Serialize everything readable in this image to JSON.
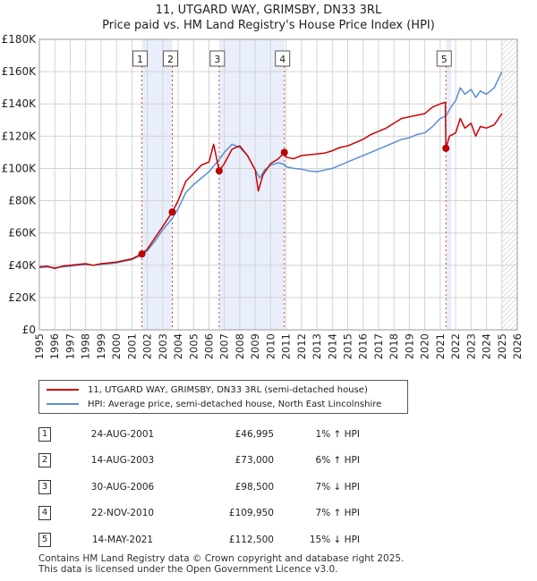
{
  "chart_data": {
    "type": "line",
    "title": "11, UTGARD WAY, GRIMSBY, DN33 3RL",
    "subtitle": "Price paid vs. HM Land Registry's House Price Index (HPI)",
    "xlim": [
      1995,
      2026
    ],
    "ylim": [
      0,
      180000
    ],
    "x_ticks": [
      "1995",
      "1996",
      "1997",
      "1998",
      "1999",
      "2000",
      "2001",
      "2002",
      "2003",
      "2004",
      "2005",
      "2006",
      "2007",
      "2008",
      "2009",
      "2010",
      "2011",
      "2012",
      "2013",
      "2014",
      "2015",
      "2016",
      "2017",
      "2018",
      "2019",
      "2020",
      "2021",
      "2022",
      "2023",
      "2024",
      "2025",
      "2026"
    ],
    "y_ticks": [
      {
        "value": 0,
        "label": "£0"
      },
      {
        "value": 20000,
        "label": "£20K"
      },
      {
        "value": 40000,
        "label": "£40K"
      },
      {
        "value": 60000,
        "label": "£60K"
      },
      {
        "value": 80000,
        "label": "£80K"
      },
      {
        "value": 100000,
        "label": "£100K"
      },
      {
        "value": 120000,
        "label": "£120K"
      },
      {
        "value": 140000,
        "label": "£140K"
      },
      {
        "value": 160000,
        "label": "£160K"
      },
      {
        "value": 180000,
        "label": "£180K"
      }
    ],
    "grid": true,
    "legend_position": "below",
    "series": [
      {
        "name": "11, UTGARD WAY, GRIMSBY, DN33 3RL (semi-detached house)",
        "color": "#cc0000",
        "points": [
          [
            1995.0,
            39000
          ],
          [
            1995.5,
            39500
          ],
          [
            1996.0,
            38000
          ],
          [
            1996.5,
            39500
          ],
          [
            1997.0,
            40000
          ],
          [
            1997.5,
            40500
          ],
          [
            1998.0,
            41000
          ],
          [
            1998.5,
            40000
          ],
          [
            1999.0,
            41000
          ],
          [
            1999.5,
            41500
          ],
          [
            2000.0,
            42000
          ],
          [
            2000.5,
            43000
          ],
          [
            2001.0,
            44000
          ],
          [
            2001.65,
            46995
          ],
          [
            2002.0,
            50000
          ],
          [
            2002.5,
            57000
          ],
          [
            2003.0,
            64000
          ],
          [
            2003.62,
            73000
          ],
          [
            2004.0,
            80000
          ],
          [
            2004.5,
            92000
          ],
          [
            2005.0,
            97000
          ],
          [
            2005.5,
            102000
          ],
          [
            2006.0,
            104000
          ],
          [
            2006.3,
            115000
          ],
          [
            2006.66,
            98500
          ],
          [
            2007.0,
            103000
          ],
          [
            2007.5,
            112000
          ],
          [
            2008.0,
            114000
          ],
          [
            2008.5,
            108000
          ],
          [
            2009.0,
            99000
          ],
          [
            2009.2,
            86000
          ],
          [
            2009.5,
            96000
          ],
          [
            2010.0,
            103000
          ],
          [
            2010.5,
            106000
          ],
          [
            2010.89,
            109950
          ],
          [
            2011.0,
            107000
          ],
          [
            2011.5,
            106000
          ],
          [
            2012.0,
            108000
          ],
          [
            2012.5,
            108500
          ],
          [
            2013.0,
            109000
          ],
          [
            2013.5,
            109500
          ],
          [
            2014.0,
            111000
          ],
          [
            2014.5,
            113000
          ],
          [
            2015.0,
            114000
          ],
          [
            2015.5,
            116000
          ],
          [
            2016.0,
            118000
          ],
          [
            2016.5,
            121000
          ],
          [
            2017.0,
            123000
          ],
          [
            2017.5,
            125000
          ],
          [
            2018.0,
            128000
          ],
          [
            2018.5,
            131000
          ],
          [
            2019.0,
            132000
          ],
          [
            2019.5,
            133000
          ],
          [
            2020.0,
            134000
          ],
          [
            2020.5,
            138000
          ],
          [
            2021.0,
            140000
          ],
          [
            2021.33,
            141000
          ],
          [
            2021.37,
            112500
          ],
          [
            2021.6,
            120000
          ],
          [
            2022.0,
            122000
          ],
          [
            2022.3,
            131000
          ],
          [
            2022.6,
            125000
          ],
          [
            2023.0,
            128000
          ],
          [
            2023.3,
            120000
          ],
          [
            2023.6,
            126000
          ],
          [
            2024.0,
            125000
          ],
          [
            2024.5,
            127000
          ],
          [
            2025.0,
            134000
          ]
        ]
      },
      {
        "name": "HPI: Average price, semi-detached house, North East Lincolnshire",
        "color": "#5b8fd0",
        "points": [
          [
            1995.0,
            38500
          ],
          [
            1995.5,
            39000
          ],
          [
            1996.0,
            38500
          ],
          [
            1996.5,
            39000
          ],
          [
            1997.0,
            39500
          ],
          [
            1997.5,
            40000
          ],
          [
            1998.0,
            40500
          ],
          [
            1998.5,
            40000
          ],
          [
            1999.0,
            40500
          ],
          [
            1999.5,
            41000
          ],
          [
            2000.0,
            41500
          ],
          [
            2000.5,
            42500
          ],
          [
            2001.0,
            43500
          ],
          [
            2001.65,
            46500
          ],
          [
            2002.0,
            49000
          ],
          [
            2002.5,
            55000
          ],
          [
            2003.0,
            62000
          ],
          [
            2003.62,
            69000
          ],
          [
            2004.0,
            75000
          ],
          [
            2004.5,
            85000
          ],
          [
            2005.0,
            90000
          ],
          [
            2005.5,
            94000
          ],
          [
            2006.0,
            98000
          ],
          [
            2006.66,
            105500
          ],
          [
            2007.0,
            110000
          ],
          [
            2007.5,
            115000
          ],
          [
            2008.0,
            113000
          ],
          [
            2008.5,
            108000
          ],
          [
            2009.0,
            99000
          ],
          [
            2009.3,
            94000
          ],
          [
            2009.6,
            99000
          ],
          [
            2010.0,
            102000
          ],
          [
            2010.5,
            103500
          ],
          [
            2010.89,
            102500
          ],
          [
            2011.0,
            101000
          ],
          [
            2011.5,
            100000
          ],
          [
            2012.0,
            99500
          ],
          [
            2012.5,
            98500
          ],
          [
            2013.0,
            98000
          ],
          [
            2013.5,
            99000
          ],
          [
            2014.0,
            100000
          ],
          [
            2014.5,
            102000
          ],
          [
            2015.0,
            104000
          ],
          [
            2015.5,
            106000
          ],
          [
            2016.0,
            108000
          ],
          [
            2016.5,
            110000
          ],
          [
            2017.0,
            112000
          ],
          [
            2017.5,
            114000
          ],
          [
            2018.0,
            116000
          ],
          [
            2018.5,
            118000
          ],
          [
            2019.0,
            119000
          ],
          [
            2019.5,
            121000
          ],
          [
            2020.0,
            122000
          ],
          [
            2020.5,
            126000
          ],
          [
            2021.0,
            131000
          ],
          [
            2021.37,
            132500
          ],
          [
            2021.7,
            138000
          ],
          [
            2022.0,
            142000
          ],
          [
            2022.3,
            150000
          ],
          [
            2022.6,
            146000
          ],
          [
            2023.0,
            149000
          ],
          [
            2023.3,
            144000
          ],
          [
            2023.6,
            148000
          ],
          [
            2024.0,
            146000
          ],
          [
            2024.5,
            150000
          ],
          [
            2025.0,
            160000
          ]
        ]
      }
    ],
    "sales": [
      {
        "num": "1",
        "x": 2001.65,
        "price": 46995
      },
      {
        "num": "2",
        "x": 2003.62,
        "price": 73000
      },
      {
        "num": "3",
        "x": 2006.66,
        "price": 98500
      },
      {
        "num": "4",
        "x": 2010.89,
        "price": 109950
      },
      {
        "num": "5",
        "x": 2021.37,
        "price": 112500
      }
    ],
    "shaded_ranges": [
      [
        2001.65,
        2003.62
      ],
      [
        2006.66,
        2010.89
      ],
      [
        2021.37,
        2021.37
      ]
    ],
    "future_from": 2025.0
  },
  "legend": {
    "property": "11, UTGARD WAY, GRIMSBY, DN33 3RL (semi-detached house)",
    "hpi": "HPI: Average price, semi-detached house, North East Lincolnshire"
  },
  "table": [
    {
      "num": "1",
      "date": "24-AUG-2001",
      "price": "£46,995",
      "hpi": "1% ↑ HPI"
    },
    {
      "num": "2",
      "date": "14-AUG-2003",
      "price": "£73,000",
      "hpi": "6% ↑ HPI"
    },
    {
      "num": "3",
      "date": "30-AUG-2006",
      "price": "£98,500",
      "hpi": "7% ↓ HPI"
    },
    {
      "num": "4",
      "date": "22-NOV-2010",
      "price": "£109,950",
      "hpi": "7% ↑ HPI"
    },
    {
      "num": "5",
      "date": "14-MAY-2021",
      "price": "£112,500",
      "hpi": "15% ↓ HPI"
    }
  ],
  "footer": {
    "line1": "Contains HM Land Registry data © Crown copyright and database right 2025.",
    "line2": "This data is licensed under the Open Government Licence v3.0."
  },
  "colors": {
    "property": "#cc0000",
    "hpi": "#5b8fd0",
    "shade": "#e8eefa",
    "sale_line": "#dd4444"
  }
}
